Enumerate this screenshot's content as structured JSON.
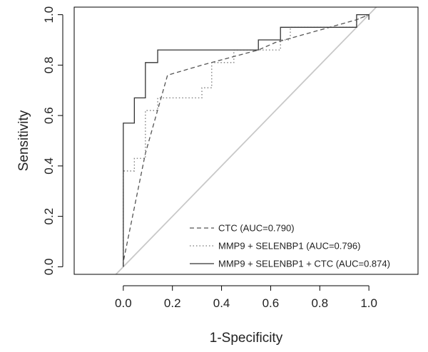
{
  "chart_data": {
    "type": "line",
    "title": "",
    "xlabel": "1-Specificity",
    "ylabel": "Sensitivity",
    "xlim": [
      -0.2,
      1.2
    ],
    "ylim": [
      -0.03,
      1.03
    ],
    "xticks": [
      "0.0",
      "0.2",
      "0.4",
      "0.6",
      "0.8",
      "1.0"
    ],
    "yticks": [
      "0.0",
      "0.2",
      "0.4",
      "0.6",
      "0.8",
      "1.0"
    ],
    "grid": false,
    "legend_position": "bottom-right",
    "reference_line": {
      "x": [
        -0.03,
        1.03
      ],
      "y": [
        -0.03,
        1.03
      ],
      "color": "#c8c8c8"
    },
    "series": [
      {
        "name": "CTC (AUC=0.790)",
        "style": "dashed",
        "color": "#555555",
        "x": [
          0.0,
          0.0,
          0.09,
          0.18,
          0.32,
          0.55,
          0.62,
          0.95,
          1.0
        ],
        "y": [
          0.0,
          0.02,
          0.45,
          0.76,
          0.8,
          0.86,
          0.89,
          0.98,
          1.0
        ]
      },
      {
        "name": "MMP9 + SELENBP1 (AUC=0.796)",
        "style": "dotted",
        "color": "#777777",
        "x": [
          0.0,
          0.0,
          0.0,
          0.045,
          0.045,
          0.09,
          0.09,
          0.14,
          0.14,
          0.32,
          0.32,
          0.36,
          0.36,
          0.45,
          0.45,
          0.64,
          0.64,
          0.68,
          0.68,
          0.95,
          0.95,
          1.0
        ],
        "y": [
          0.0,
          0.02,
          0.38,
          0.38,
          0.43,
          0.43,
          0.62,
          0.62,
          0.67,
          0.67,
          0.71,
          0.71,
          0.81,
          0.81,
          0.86,
          0.86,
          0.9,
          0.9,
          0.95,
          0.95,
          0.98,
          1.0
        ]
      },
      {
        "name": "MMP9 + SELENBP1 + CTC (AUC=0.874)",
        "style": "solid",
        "color": "#333333",
        "x": [
          0.0,
          0.0,
          0.0,
          0.045,
          0.045,
          0.09,
          0.09,
          0.14,
          0.14,
          0.55,
          0.55,
          0.64,
          0.64,
          0.95,
          0.95,
          1.0,
          1.0
        ],
        "y": [
          0.0,
          0.02,
          0.57,
          0.57,
          0.67,
          0.67,
          0.81,
          0.81,
          0.86,
          0.86,
          0.9,
          0.9,
          0.95,
          0.95,
          1.0,
          1.0,
          0.98
        ]
      }
    ]
  }
}
